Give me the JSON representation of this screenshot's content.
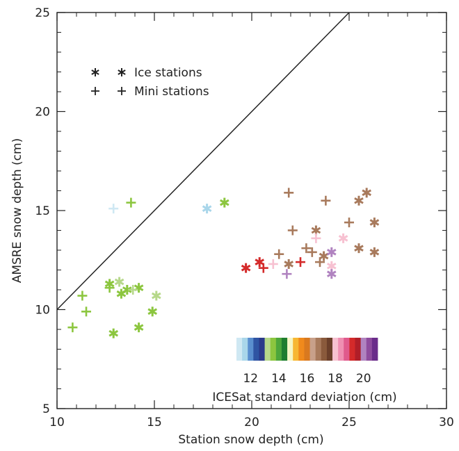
{
  "chart_data": {
    "type": "scatter",
    "xlabel": "Station snow depth (cm)",
    "ylabel": "AMSRE snow depth (cm)",
    "xlim": [
      10,
      30
    ],
    "ylim": [
      5,
      25
    ],
    "x_ticks": [
      "10",
      "15",
      "20",
      "25",
      "30"
    ],
    "y_ticks": [
      "5",
      "10",
      "15",
      "20",
      "25"
    ],
    "one_to_one_line": true,
    "legend": {
      "placement": "top-left",
      "entries": [
        {
          "symbol": "asterisk",
          "label": "Ice stations"
        },
        {
          "symbol": "plus",
          "label": "Mini stations"
        }
      ]
    },
    "colorbar": {
      "label": "ICESat standard deviation (cm)",
      "tick_labels": [
        "12",
        "14",
        "16",
        "18",
        "20"
      ],
      "colors": [
        "#cfe8f3",
        "#a9d6ea",
        "#5a8fcf",
        "#2f54a3",
        "#2b3a8a",
        "#b6d88a",
        "#8cc63f",
        "#4da63b",
        "#1f7d2f",
        "#f6f6c6",
        "#f7b733",
        "#f08a1c",
        "#d9791f",
        "#c8a08a",
        "#a87a5c",
        "#8a5a3c",
        "#6b3f2a",
        "#f7c1d1",
        "#ef8fb2",
        "#e05a8c",
        "#d42a2a",
        "#b01e28",
        "#b083c0",
        "#8e4c9e",
        "#6a2c8a"
      ]
    },
    "series": [
      {
        "name": "Ice stations",
        "marker": "asterisk",
        "points": [
          {
            "x": 12.7,
            "y": 11.3,
            "color": "#8cc63f"
          },
          {
            "x": 13.2,
            "y": 11.4,
            "color": "#b6d88a"
          },
          {
            "x": 13.6,
            "y": 11.0,
            "color": "#8cc63f"
          },
          {
            "x": 14.2,
            "y": 11.1,
            "color": "#8cc63f"
          },
          {
            "x": 13.3,
            "y": 10.8,
            "color": "#8cc63f"
          },
          {
            "x": 15.1,
            "y": 10.7,
            "color": "#b6d88a"
          },
          {
            "x": 14.9,
            "y": 9.9,
            "color": "#8cc63f"
          },
          {
            "x": 14.2,
            "y": 9.1,
            "color": "#8cc63f"
          },
          {
            "x": 12.9,
            "y": 8.8,
            "color": "#8cc63f"
          },
          {
            "x": 17.7,
            "y": 15.1,
            "color": "#a9d6ea"
          },
          {
            "x": 18.6,
            "y": 15.4,
            "color": "#8cc63f"
          },
          {
            "x": 19.7,
            "y": 12.1,
            "color": "#d42a2a"
          },
          {
            "x": 20.4,
            "y": 12.4,
            "color": "#d42a2a"
          },
          {
            "x": 21.9,
            "y": 12.3,
            "color": "#a87a5c"
          },
          {
            "x": 23.3,
            "y": 14.0,
            "color": "#a87a5c"
          },
          {
            "x": 23.7,
            "y": 12.7,
            "color": "#a87a5c"
          },
          {
            "x": 24.1,
            "y": 12.9,
            "color": "#b083c0"
          },
          {
            "x": 24.1,
            "y": 12.2,
            "color": "#f7c1d1"
          },
          {
            "x": 24.1,
            "y": 11.8,
            "color": "#b083c0"
          },
          {
            "x": 24.7,
            "y": 13.6,
            "color": "#f7c1d1"
          },
          {
            "x": 25.5,
            "y": 15.5,
            "color": "#a87a5c"
          },
          {
            "x": 25.9,
            "y": 15.9,
            "color": "#a87a5c"
          },
          {
            "x": 26.3,
            "y": 14.4,
            "color": "#a87a5c"
          },
          {
            "x": 25.5,
            "y": 13.1,
            "color": "#a87a5c"
          },
          {
            "x": 26.3,
            "y": 12.9,
            "color": "#a87a5c"
          }
        ]
      },
      {
        "name": "Mini stations",
        "marker": "plus",
        "points": [
          {
            "x": 12.9,
            "y": 15.1,
            "color": "#cfe8f3"
          },
          {
            "x": 13.8,
            "y": 15.4,
            "color": "#8cc63f"
          },
          {
            "x": 11.3,
            "y": 10.7,
            "color": "#8cc63f"
          },
          {
            "x": 10.8,
            "y": 9.1,
            "color": "#8cc63f"
          },
          {
            "x": 11.5,
            "y": 9.9,
            "color": "#8cc63f"
          },
          {
            "x": 12.7,
            "y": 11.1,
            "color": "#8cc63f"
          },
          {
            "x": 13.9,
            "y": 11.0,
            "color": "#b6d88a"
          },
          {
            "x": 20.6,
            "y": 12.1,
            "color": "#d42a2a"
          },
          {
            "x": 21.1,
            "y": 12.3,
            "color": "#f7c1d1"
          },
          {
            "x": 21.4,
            "y": 12.8,
            "color": "#a87a5c"
          },
          {
            "x": 21.9,
            "y": 15.9,
            "color": "#a87a5c"
          },
          {
            "x": 22.1,
            "y": 14.0,
            "color": "#a87a5c"
          },
          {
            "x": 22.5,
            "y": 12.4,
            "color": "#d42a2a"
          },
          {
            "x": 21.8,
            "y": 11.8,
            "color": "#b083c0"
          },
          {
            "x": 22.8,
            "y": 13.1,
            "color": "#a87a5c"
          },
          {
            "x": 23.3,
            "y": 13.6,
            "color": "#f7c1d1"
          },
          {
            "x": 23.5,
            "y": 12.4,
            "color": "#a87a5c"
          },
          {
            "x": 23.8,
            "y": 15.5,
            "color": "#a87a5c"
          },
          {
            "x": 25.0,
            "y": 14.4,
            "color": "#a87a5c"
          },
          {
            "x": 23.1,
            "y": 12.9,
            "color": "#a87a5c"
          }
        ]
      }
    ]
  }
}
